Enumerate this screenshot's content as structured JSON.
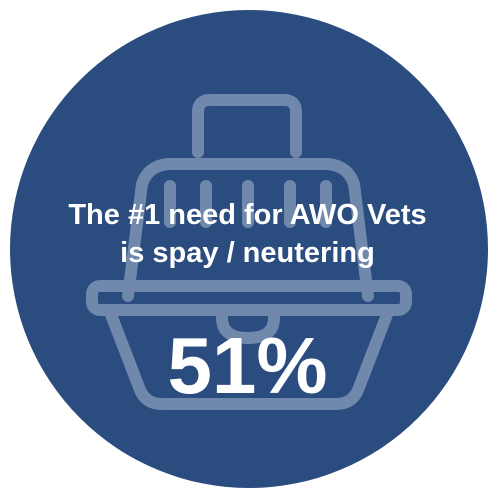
{
  "infographic": {
    "headline_line1": "The #1 need for AWO Vets",
    "headline_line2": "is spay / neutering",
    "stat_value": "51%"
  },
  "colors": {
    "circle_fill": "#2b4c7e",
    "icon_stroke": "#6f88ab",
    "text": "#ffffff"
  },
  "icons": {
    "background": "pet-carrier-icon"
  }
}
